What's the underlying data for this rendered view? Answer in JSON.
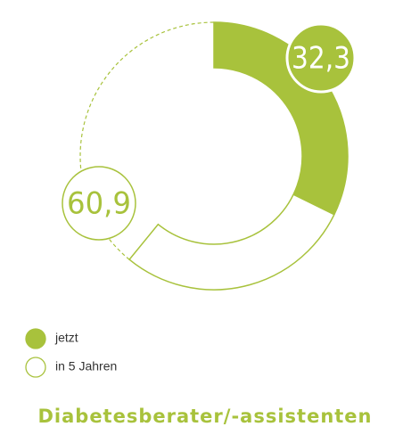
{
  "chart_data": {
    "type": "radial",
    "title": "Diabetesberater/-assistenten",
    "ylim": [
      0,
      100
    ],
    "series": [
      {
        "name": "jetzt",
        "color": "#a8c23c",
        "filled": true,
        "values": [
          32.3
        ],
        "value_labels": [
          "32,3"
        ]
      },
      {
        "name": "in 5 Jahren",
        "color": "#a8c23c",
        "filled": false,
        "values": [
          60.9
        ],
        "value_labels": [
          "60,9"
        ]
      }
    ]
  }
}
